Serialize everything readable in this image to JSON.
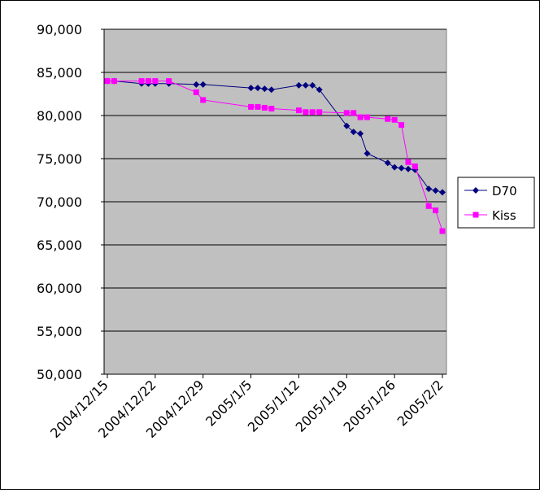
{
  "chart_data": {
    "type": "line",
    "title": "",
    "xlabel": "",
    "ylabel": "",
    "ylim": [
      50000,
      90000
    ],
    "y_ticks": [
      "90,000",
      "85,000",
      "80,000",
      "75,000",
      "70,000",
      "65,000",
      "60,000",
      "55,000",
      "50,000"
    ],
    "y_tick_values": [
      90000,
      85000,
      80000,
      75000,
      70000,
      65000,
      60000,
      55000,
      50000
    ],
    "x_ticks": [
      "2004/12/15",
      "2004/12/22",
      "2004/12/29",
      "2005/1/5",
      "2005/1/12",
      "2005/1/19",
      "2005/1/26",
      "2005/2/2"
    ],
    "x_tick_dates": [
      "2004-12-15",
      "2004-12-22",
      "2004-12-29",
      "2005-01-05",
      "2005-01-12",
      "2005-01-19",
      "2005-01-26",
      "2005-02-02"
    ],
    "xlim": [
      "2004-12-15",
      "2005-02-02"
    ],
    "grid": "horizontal",
    "plot_background": "#c0c0c0",
    "legend_position": "right",
    "series": [
      {
        "name": "D70",
        "color": "#000080",
        "marker": "diamond",
        "points": [
          [
            "2004-12-15",
            84000
          ],
          [
            "2004-12-16",
            84000
          ],
          [
            "2004-12-20",
            83700
          ],
          [
            "2004-12-21",
            83700
          ],
          [
            "2004-12-22",
            83700
          ],
          [
            "2004-12-24",
            83700
          ],
          [
            "2004-12-28",
            83600
          ],
          [
            "2004-12-29",
            83600
          ],
          [
            "2005-01-05",
            83200
          ],
          [
            "2005-01-06",
            83200
          ],
          [
            "2005-01-07",
            83100
          ],
          [
            "2005-01-08",
            83000
          ],
          [
            "2005-01-12",
            83500
          ],
          [
            "2005-01-13",
            83500
          ],
          [
            "2005-01-14",
            83500
          ],
          [
            "2005-01-15",
            83000
          ],
          [
            "2005-01-19",
            78800
          ],
          [
            "2005-01-20",
            78100
          ],
          [
            "2005-01-21",
            77900
          ],
          [
            "2005-01-22",
            75600
          ],
          [
            "2005-01-25",
            74500
          ],
          [
            "2005-01-26",
            74000
          ],
          [
            "2005-01-27",
            73900
          ],
          [
            "2005-01-28",
            73800
          ],
          [
            "2005-01-29",
            73700
          ],
          [
            "2005-01-31",
            71500
          ],
          [
            "2005-02-01",
            71300
          ],
          [
            "2005-02-02",
            71100
          ]
        ]
      },
      {
        "name": "Kiss",
        "color": "#ff00ff",
        "marker": "square",
        "points": [
          [
            "2004-12-15",
            84000
          ],
          [
            "2004-12-16",
            84000
          ],
          [
            "2004-12-20",
            84000
          ],
          [
            "2004-12-21",
            84000
          ],
          [
            "2004-12-22",
            84000
          ],
          [
            "2004-12-24",
            84000
          ],
          [
            "2004-12-28",
            82700
          ],
          [
            "2004-12-29",
            81800
          ],
          [
            "2005-01-05",
            81000
          ],
          [
            "2005-01-06",
            81000
          ],
          [
            "2005-01-07",
            80900
          ],
          [
            "2005-01-08",
            80800
          ],
          [
            "2005-01-12",
            80600
          ],
          [
            "2005-01-13",
            80400
          ],
          [
            "2005-01-14",
            80400
          ],
          [
            "2005-01-15",
            80400
          ],
          [
            "2005-01-19",
            80300
          ],
          [
            "2005-01-20",
            80300
          ],
          [
            "2005-01-21",
            79800
          ],
          [
            "2005-01-22",
            79800
          ],
          [
            "2005-01-25",
            79600
          ],
          [
            "2005-01-26",
            79500
          ],
          [
            "2005-01-27",
            78900
          ],
          [
            "2005-01-28",
            74600
          ],
          [
            "2005-01-29",
            74100
          ],
          [
            "2005-01-31",
            69500
          ],
          [
            "2005-02-01",
            69000
          ],
          [
            "2005-02-02",
            66600
          ]
        ]
      }
    ]
  }
}
